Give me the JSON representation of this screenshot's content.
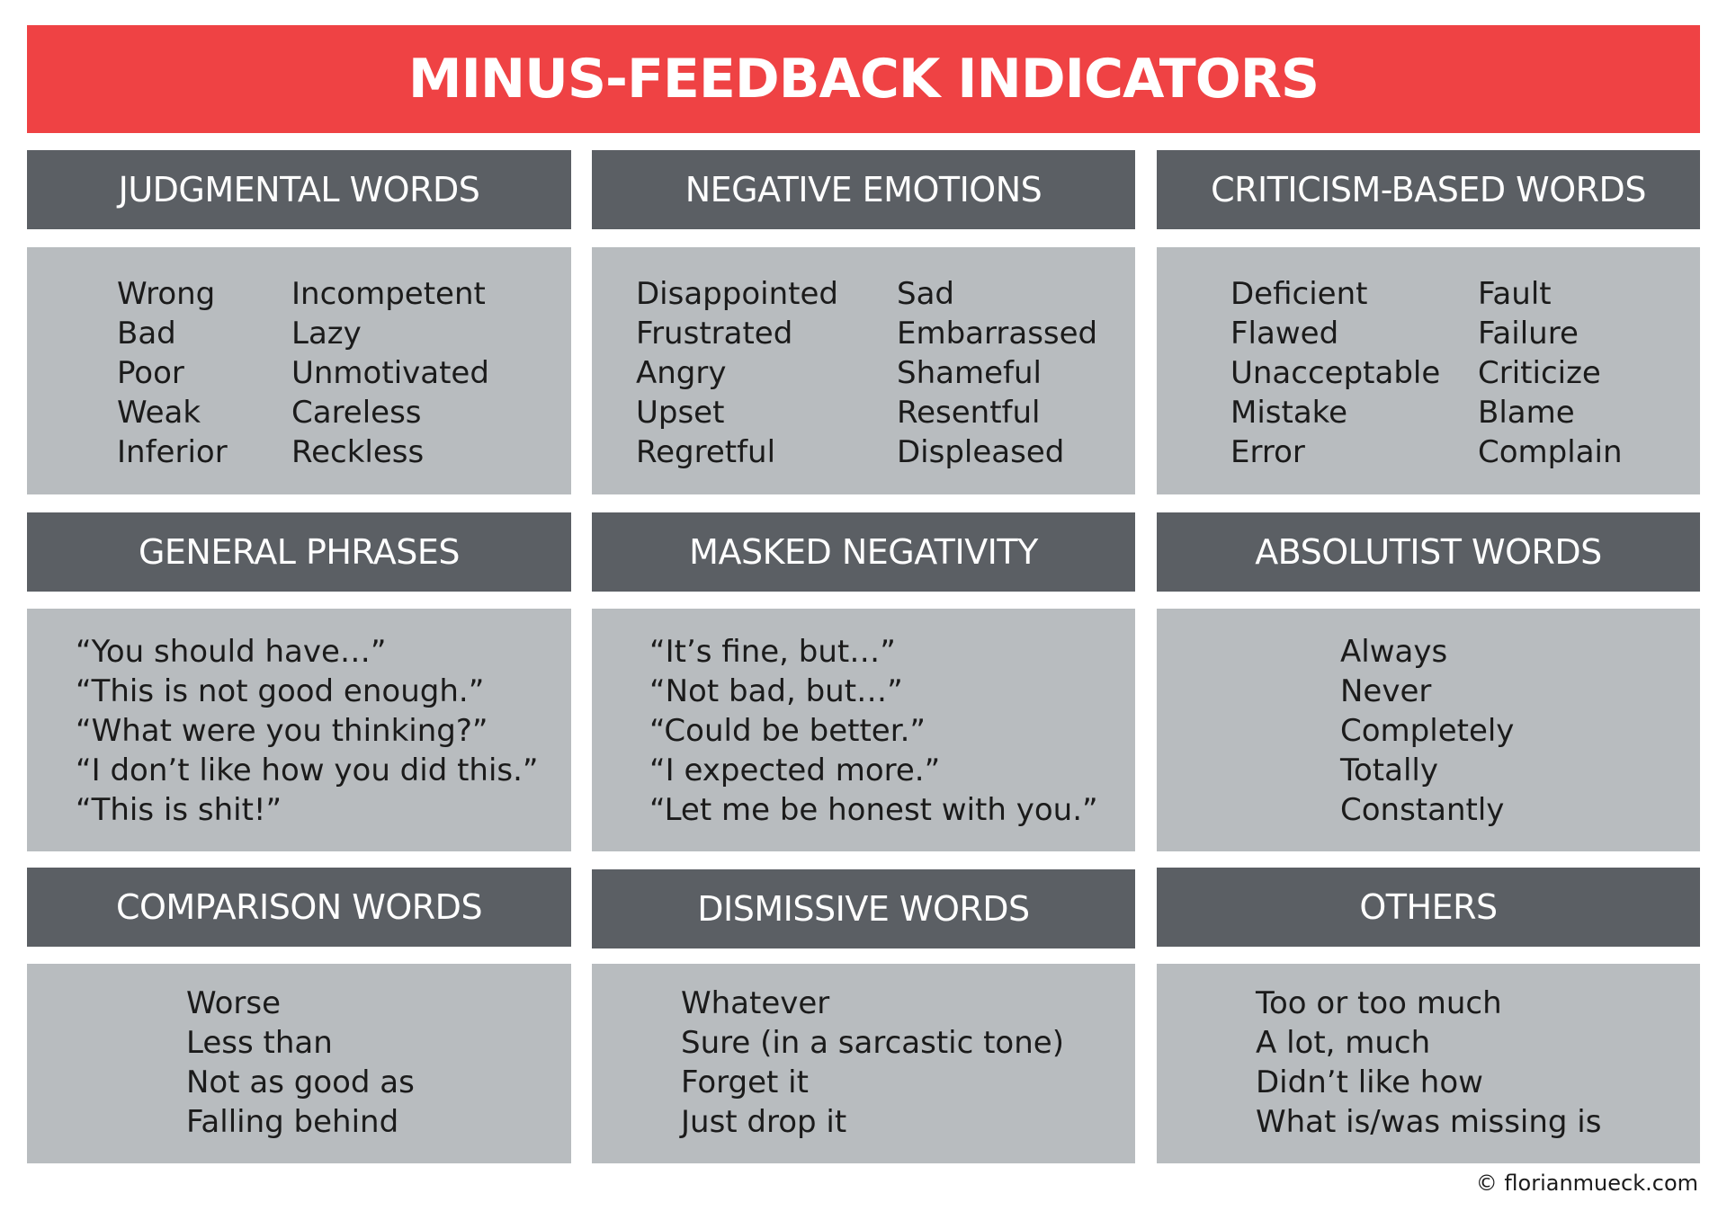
{
  "title": "MINUS-FEEDBACK INDICATORS",
  "colors": {
    "title_bg": "#ef4244",
    "header_bg": "#5b5f64",
    "body_bg": "#b8bcbf"
  },
  "sections": [
    {
      "heading": "JUDGMENTAL WORDS",
      "col1": [
        "Wrong",
        "Bad",
        "Poor",
        "Weak",
        "Inferior"
      ],
      "col2": [
        "Incompetent",
        "Lazy",
        "Unmotivated",
        "Careless",
        "Reckless"
      ]
    },
    {
      "heading": "NEGATIVE EMOTIONS",
      "col1": [
        "Disappointed",
        "Frustrated",
        "Angry",
        "Upset",
        "Regretful"
      ],
      "col2": [
        "Sad",
        "Embarrassed",
        "Shameful",
        "Resentful",
        "Displeased"
      ]
    },
    {
      "heading": "CRITICISM-BASED WORDS",
      "col1": [
        "Deficient",
        "Flawed",
        "Unacceptable",
        "Mistake",
        "Error"
      ],
      "col2": [
        "Fault",
        "Failure",
        "Criticize",
        "Blame",
        "Complain"
      ]
    },
    {
      "heading": "GENERAL PHRASES",
      "col1": [
        "“You should have…”",
        "“This is not good enough.”",
        "“What were you thinking?”",
        "“I don’t like how you did this.”",
        "“This is shit!”"
      ]
    },
    {
      "heading": "MASKED NEGATIVITY",
      "col1": [
        "“It’s fine, but…”",
        "“Not bad, but…”",
        "“Could be better.”",
        "“I expected more.”",
        "“Let me be honest with you.”"
      ]
    },
    {
      "heading": "ABSOLUTIST WORDS",
      "col1": [
        "Always",
        "Never",
        "Completely",
        "Totally",
        "Constantly"
      ]
    },
    {
      "heading": "COMPARISON WORDS",
      "col1": [
        "Worse",
        "Less than",
        "Not as good as",
        "Falling behind"
      ]
    },
    {
      "heading": "DISMISSIVE WORDS",
      "col1": [
        "Whatever",
        "Sure (in a sarcastic tone)",
        "Forget it",
        "Just drop it"
      ]
    },
    {
      "heading": "OTHERS",
      "col1": [
        "Too or too much",
        "A lot, much",
        "Didn’t like how",
        "What is/was missing is"
      ]
    }
  ],
  "footer": "© florianmueck.com"
}
